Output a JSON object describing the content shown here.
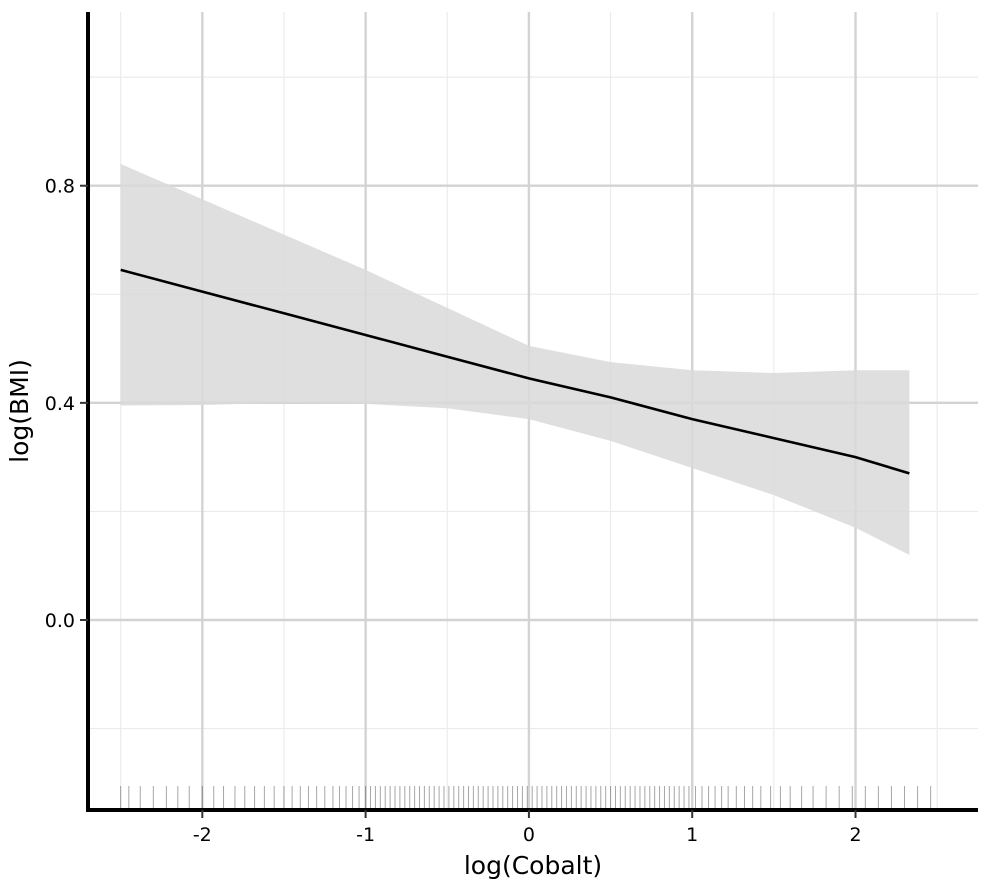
{
  "chart_data": {
    "type": "line",
    "xlabel": "log(Cobalt)",
    "ylabel": "log(BMI)",
    "xlim": [
      -2.7,
      2.75
    ],
    "ylim": [
      -0.35,
      1.12
    ],
    "x_ticks": [
      -2,
      -1,
      0,
      1,
      2
    ],
    "x_tick_labels": [
      "-2",
      "-1",
      "0",
      "1",
      "2"
    ],
    "y_ticks": [
      0.0,
      0.4,
      0.8
    ],
    "y_tick_labels": [
      "0.0",
      "0.4",
      "0.8"
    ],
    "x_minor_ticks": [
      -2.5,
      -1.5,
      -0.5,
      0.5,
      1.5,
      2.5
    ],
    "y_minor_ticks": [
      -0.2,
      0.2,
      0.6,
      1.0
    ],
    "grid": true,
    "legend": false,
    "series": [
      {
        "x": [
          -2.5,
          -2.0,
          -1.5,
          -1.0,
          -0.5,
          0.0,
          0.5,
          1.0,
          1.5,
          2.0,
          2.33
        ],
        "y": [
          0.645,
          0.605,
          0.565,
          0.525,
          0.485,
          0.445,
          0.41,
          0.37,
          0.335,
          0.3,
          0.27
        ],
        "ci_upper": [
          0.84,
          0.775,
          0.71,
          0.645,
          0.575,
          0.505,
          0.475,
          0.46,
          0.455,
          0.46,
          0.46
        ],
        "ci_lower": [
          0.395,
          0.396,
          0.4,
          0.398,
          0.39,
          0.37,
          0.33,
          0.28,
          0.23,
          0.17,
          0.12
        ],
        "line_color": "#000000",
        "band_color": "#d9d9d9"
      }
    ],
    "rug_x": [
      -2.5,
      -2.45,
      -2.38,
      -2.3,
      -2.22,
      -2.15,
      -2.08,
      -2.0,
      -1.93,
      -1.87,
      -1.8,
      -1.74,
      -1.68,
      -1.62,
      -1.56,
      -1.5,
      -1.45,
      -1.4,
      -1.35,
      -1.3,
      -1.25,
      -1.2,
      -1.16,
      -1.12,
      -1.08,
      -1.04,
      -1.0,
      -0.97,
      -0.94,
      -0.91,
      -0.88,
      -0.85,
      -0.82,
      -0.79,
      -0.76,
      -0.73,
      -0.7,
      -0.67,
      -0.64,
      -0.61,
      -0.58,
      -0.55,
      -0.52,
      -0.49,
      -0.46,
      -0.43,
      -0.4,
      -0.37,
      -0.34,
      -0.31,
      -0.28,
      -0.25,
      -0.22,
      -0.19,
      -0.16,
      -0.13,
      -0.1,
      -0.07,
      -0.04,
      -0.01,
      0.02,
      0.05,
      0.08,
      0.11,
      0.14,
      0.17,
      0.2,
      0.23,
      0.26,
      0.29,
      0.32,
      0.35,
      0.38,
      0.41,
      0.44,
      0.47,
      0.5,
      0.53,
      0.56,
      0.59,
      0.62,
      0.65,
      0.68,
      0.71,
      0.74,
      0.77,
      0.8,
      0.83,
      0.86,
      0.89,
      0.92,
      0.95,
      0.98,
      1.02,
      1.06,
      1.1,
      1.14,
      1.18,
      1.22,
      1.27,
      1.32,
      1.37,
      1.42,
      1.48,
      1.54,
      1.6,
      1.67,
      1.74,
      1.82,
      1.9,
      1.98,
      2.06,
      2.14,
      2.22,
      2.3,
      2.38,
      2.46
    ]
  }
}
